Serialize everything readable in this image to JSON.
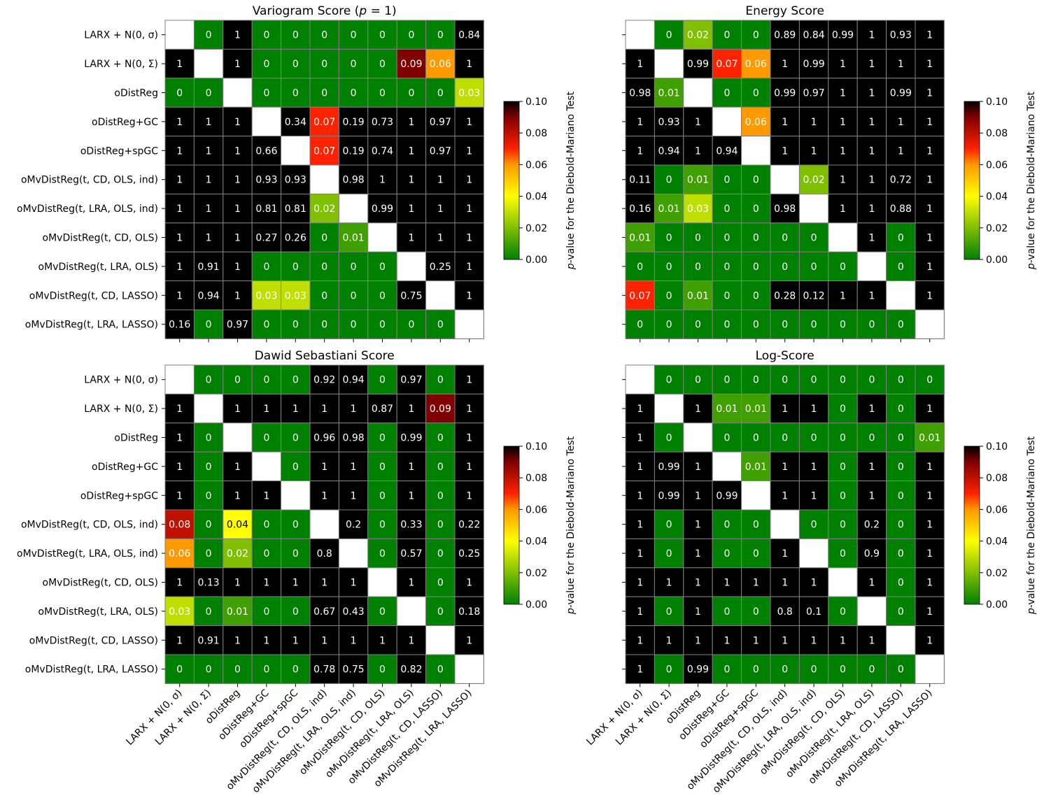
{
  "colorscale": {
    "stops": [
      {
        "value": 0.0,
        "color": "#008000"
      },
      {
        "value": 0.04,
        "color": "#ffff00"
      },
      {
        "value": 0.06,
        "color": "#ff9900"
      },
      {
        "value": 0.07,
        "color": "#ff2200"
      },
      {
        "value": 0.09,
        "color": "#800000"
      },
      {
        "value": 0.1,
        "color": "#000000"
      }
    ],
    "vmin": 0.0,
    "vmax": 0.1,
    "grid_color": "#808080",
    "diagonal_color": "#ffffff"
  },
  "colorbar": {
    "ticks": [
      "0.00",
      "0.02",
      "0.04",
      "0.06",
      "0.08",
      "0.10"
    ],
    "label": "p-value for the Diebold-Mariano Test"
  },
  "chart_data": [
    {
      "type": "heatmap",
      "title": "Variogram Score (p = 1)",
      "rows": [
        "LARX + N(0, σ)",
        "LARX + N(0, Σ)",
        "oDistReg",
        "oDistReg+GC",
        "oDistReg+spGC",
        "oMvDistReg(t, CD, OLS, ind)",
        "oMvDistReg(t, LRA, OLS, ind)",
        "oMvDistReg(t, CD, OLS)",
        "oMvDistReg(t, LRA, OLS)",
        "oMvDistReg(t, CD, LASSO)",
        "oMvDistReg(t, LRA, LASSO)"
      ],
      "columns": [],
      "values": [
        [
          null,
          0,
          1,
          0,
          0,
          0,
          0,
          0,
          0,
          0,
          0.84
        ],
        [
          1,
          null,
          1,
          0,
          0,
          0,
          0,
          0,
          0.09,
          0.06,
          1
        ],
        [
          0,
          0,
          null,
          0,
          0,
          0,
          0,
          0,
          0,
          0,
          0.03
        ],
        [
          1,
          1,
          1,
          null,
          0.34,
          0.07,
          0.19,
          0.73,
          1,
          0.97,
          1
        ],
        [
          1,
          1,
          1,
          0.66,
          null,
          0.07,
          0.19,
          0.74,
          1,
          0.97,
          1
        ],
        [
          1,
          1,
          1,
          0.93,
          0.93,
          null,
          0.98,
          1,
          1,
          1,
          1
        ],
        [
          1,
          1,
          1,
          0.81,
          0.81,
          0.02,
          null,
          0.99,
          1,
          1,
          1
        ],
        [
          1,
          1,
          1,
          0.27,
          0.26,
          0,
          0.01,
          null,
          1,
          1,
          1
        ],
        [
          1,
          0.91,
          1,
          0,
          0,
          0,
          0,
          0,
          null,
          0.25,
          1
        ],
        [
          1,
          0.94,
          1,
          0.03,
          0.03,
          0,
          0,
          0,
          0.75,
          null,
          1
        ],
        [
          0.16,
          0,
          0.97,
          0,
          0,
          0,
          0,
          0,
          0,
          0,
          null
        ]
      ]
    },
    {
      "type": "heatmap",
      "title": "Energy Score",
      "rows": [],
      "columns": [],
      "values": [
        [
          null,
          0,
          0.02,
          0,
          0,
          0.89,
          0.84,
          0.99,
          1,
          0.93,
          1
        ],
        [
          1,
          null,
          0.99,
          0.07,
          0.06,
          1,
          0.99,
          1,
          1,
          1,
          1
        ],
        [
          0.98,
          0.01,
          null,
          0,
          0,
          0.99,
          0.97,
          1,
          1,
          0.99,
          1
        ],
        [
          1,
          0.93,
          1,
          null,
          0.06,
          1,
          1,
          1,
          1,
          1,
          1
        ],
        [
          1,
          0.94,
          1,
          0.94,
          null,
          1,
          1,
          1,
          1,
          1,
          1
        ],
        [
          0.11,
          0,
          0.01,
          0,
          0,
          null,
          0.02,
          1,
          1,
          0.72,
          1
        ],
        [
          0.16,
          0.01,
          0.03,
          0,
          0,
          0.98,
          null,
          1,
          1,
          0.88,
          1
        ],
        [
          0.01,
          0,
          0,
          0,
          0,
          0,
          0,
          null,
          1,
          0,
          1
        ],
        [
          0,
          0,
          0,
          0,
          0,
          0,
          0,
          0,
          null,
          0,
          1
        ],
        [
          0.07,
          0,
          0.01,
          0,
          0,
          0.28,
          0.12,
          1,
          1,
          null,
          1
        ],
        [
          0,
          0,
          0,
          0,
          0,
          0,
          0,
          0,
          0,
          0,
          null
        ]
      ]
    },
    {
      "type": "heatmap",
      "title": "Dawid Sebastiani Score",
      "rows": [
        "LARX + N(0, σ)",
        "LARX + N(0, Σ)",
        "oDistReg",
        "oDistReg+GC",
        "oDistReg+spGC",
        "oMvDistReg(t, CD, OLS, ind)",
        "oMvDistReg(t, LRA, OLS, ind)",
        "oMvDistReg(t, CD, OLS)",
        "oMvDistReg(t, LRA, OLS)",
        "oMvDistReg(t, CD, LASSO)",
        "oMvDistReg(t, LRA, LASSO)"
      ],
      "columns": [
        "LARX + N(0, σ)",
        "LARX + N(0, Σ)",
        "oDistReg",
        "oDistReg+GC",
        "oDistReg+spGC",
        "oMvDistReg(t, CD, OLS, ind)",
        "oMvDistReg(t, LRA, OLS, ind)",
        "oMvDistReg(t, CD, OLS)",
        "oMvDistReg(t, LRA, OLS)",
        "oMvDistReg(t, CD, LASSO)",
        "oMvDistReg(t, LRA, LASSO)"
      ],
      "values": [
        [
          null,
          0,
          0,
          0,
          0,
          0.92,
          0.94,
          0,
          0.97,
          0,
          1
        ],
        [
          1,
          null,
          1,
          1,
          1,
          1,
          1,
          0.87,
          1,
          0.09,
          1
        ],
        [
          1,
          0,
          null,
          0,
          0,
          0.96,
          0.98,
          0,
          0.99,
          0,
          1
        ],
        [
          1,
          0,
          1,
          null,
          0,
          1,
          1,
          0,
          1,
          0,
          1
        ],
        [
          1,
          0,
          1,
          1,
          null,
          1,
          1,
          0,
          1,
          0,
          1
        ],
        [
          0.08,
          0,
          0.04,
          0,
          0,
          null,
          0.2,
          0,
          0.33,
          0,
          0.22
        ],
        [
          0.06,
          0,
          0.02,
          0,
          0,
          0.8,
          null,
          0,
          0.57,
          0,
          0.25
        ],
        [
          1,
          0.13,
          1,
          1,
          1,
          1,
          1,
          null,
          1,
          0,
          1
        ],
        [
          0.03,
          0,
          0.01,
          0,
          0,
          0.67,
          0.43,
          0,
          null,
          0,
          0.18
        ],
        [
          1,
          0.91,
          1,
          1,
          1,
          1,
          1,
          1,
          1,
          null,
          1
        ],
        [
          0,
          0,
          0,
          0,
          0,
          0.78,
          0.75,
          0,
          0.82,
          0,
          null
        ]
      ]
    },
    {
      "type": "heatmap",
      "title": "Log-Score",
      "rows": [],
      "columns": [
        "LARX + N(0, σ)",
        "LARX + N(0, Σ)",
        "oDistReg",
        "oDistReg+GC",
        "oDistReg+spGC",
        "oMvDistReg(t, CD, OLS, ind)",
        "oMvDistReg(t, LRA, OLS, ind)",
        "oMvDistReg(t, CD, OLS)",
        "oMvDistReg(t, LRA, OLS)",
        "oMvDistReg(t, CD, LASSO)",
        "oMvDistReg(t, LRA, LASSO)"
      ],
      "values": [
        [
          null,
          0,
          0,
          0,
          0,
          0,
          0,
          0,
          0,
          0,
          0
        ],
        [
          1,
          null,
          1,
          0.01,
          0.01,
          1,
          1,
          0,
          1,
          0,
          1
        ],
        [
          1,
          0,
          null,
          0,
          0,
          0,
          0,
          0,
          0,
          0,
          0.01
        ],
        [
          1,
          0.99,
          1,
          null,
          0.01,
          1,
          1,
          0,
          1,
          0,
          1
        ],
        [
          1,
          0.99,
          1,
          0.99,
          null,
          1,
          1,
          0,
          1,
          0,
          1
        ],
        [
          1,
          0,
          1,
          0,
          0,
          null,
          0,
          0,
          0.2,
          0,
          1
        ],
        [
          1,
          0,
          1,
          0,
          0,
          1,
          null,
          0,
          0.9,
          0,
          1
        ],
        [
          1,
          1,
          1,
          1,
          1,
          1,
          1,
          null,
          1,
          0,
          1
        ],
        [
          1,
          0,
          1,
          0,
          0,
          0.8,
          0.1,
          0,
          null,
          0,
          1
        ],
        [
          1,
          1,
          1,
          1,
          1,
          1,
          1,
          1,
          1,
          null,
          1
        ],
        [
          1,
          0,
          0.99,
          0,
          0,
          0,
          0,
          0,
          0,
          0,
          null
        ]
      ]
    }
  ]
}
